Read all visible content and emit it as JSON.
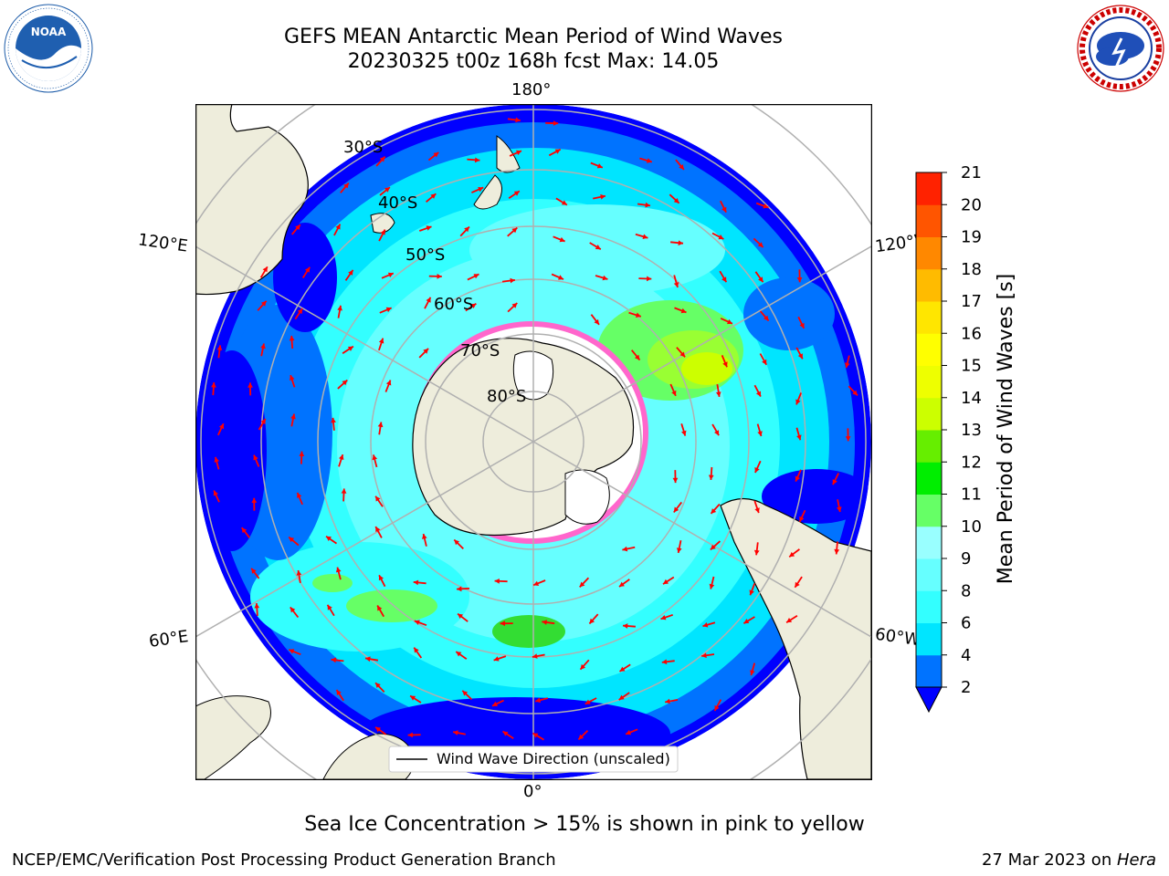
{
  "header": {
    "title_line1": "GEFS MEAN Antarctic Mean Period of Wind Waves",
    "title_line2": "20230325 t00z 168h fcst   Max: 14.05"
  },
  "logos": {
    "left_name": "noara-logo",
    "left_text": "NOAA",
    "left_ring_text": "NATIONAL OCEANIC AND ATMOSPHERIC ADMINISTRATION · U.S. DEPARTMENT OF COMMERCE",
    "right_name": "nws-logo",
    "right_ring_text": "NATIONAL WEATHER SERVICE"
  },
  "map": {
    "projection": "south-polar-stereographic",
    "lon_labels": {
      "top": "180°",
      "bottom": "0°",
      "upper_left": "120°E",
      "upper_right": "120°W",
      "lower_left": "60°E",
      "lower_right": "60°W"
    },
    "lat_labels": [
      "30°S",
      "40°S",
      "50°S",
      "60°S",
      "70°S",
      "80°S"
    ],
    "legend_text": "Wind Wave Direction (unscaled)",
    "arrow_color": "#ff0000",
    "land_color": "#eeeddc",
    "ocean_colors": {
      "dark_blue": "#0000ff",
      "blue": "#0073ff",
      "cyan": "#00e5ff",
      "light_cyan": "#33ffff",
      "pale_cyan": "#99ffff",
      "green": "#66ff66",
      "lime": "#99ff33",
      "yellowgreen": "#ccff00"
    }
  },
  "colorbar": {
    "label": "Mean Period of Wind Waves [s]",
    "ticks": [
      "2",
      "4",
      "6",
      "8",
      "9",
      "10",
      "11",
      "12",
      "13",
      "14",
      "15",
      "16",
      "17",
      "18",
      "19",
      "20",
      "21"
    ],
    "colors": [
      "#0073ff",
      "#00e5ff",
      "#33ffff",
      "#66ffff",
      "#99ffff",
      "#66ff66",
      "#00ee00",
      "#66ee00",
      "#ccff00",
      "#eeff00",
      "#ffff00",
      "#ffe600",
      "#ffbb00",
      "#ff8800",
      "#ff5500",
      "#ff2200"
    ],
    "under_color": "#0000ff",
    "over_color": "#ff0000"
  },
  "caption": "Sea Ice Concentration > 15% is shown in pink to yellow",
  "footer": {
    "left": "NCEP/EMC/Verification Post Processing Product Generation Branch",
    "right_date": "27 Mar 2023 on ",
    "right_machine": "Hera"
  }
}
